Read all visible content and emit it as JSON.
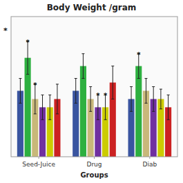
{
  "chart_data": {
    "type": "bar",
    "title": "Body Weight /gram",
    "x_label": "Groups",
    "categories": [
      "Seed-Juice",
      "Drug",
      "Diab"
    ],
    "series": [
      {
        "color": "#3a55a0",
        "values": [
          216,
          216,
          215
        ],
        "errors": [
          1.5,
          1.5,
          1.5
        ]
      },
      {
        "color": "#2db040",
        "values": [
          220,
          219,
          219
        ],
        "errors": [
          2.0,
          1.5,
          1.5
        ]
      },
      {
        "color": "#c8b87a",
        "values": [
          215,
          215,
          216
        ],
        "errors": [
          1.8,
          1.5,
          1.5
        ]
      },
      {
        "color": "#7030a0",
        "values": [
          214,
          214,
          215
        ],
        "errors": [
          1.5,
          1.5,
          1.5
        ]
      },
      {
        "color": "#cccc00",
        "values": [
          214,
          214,
          215
        ],
        "errors": [
          1.5,
          1.5,
          1.2
        ]
      },
      {
        "color": "#cc2222",
        "values": [
          215,
          217,
          214
        ],
        "errors": [
          1.8,
          2.0,
          1.5
        ]
      }
    ],
    "annotations": [
      {
        "text": "*",
        "category": "Seed-Juice",
        "series": 1
      },
      {
        "text": "*",
        "category": "Seed-Juice",
        "series": 2
      },
      {
        "text": "*",
        "category": "Drug",
        "series": 3
      },
      {
        "text": "*",
        "category": "Drug",
        "series": 4
      },
      {
        "text": "*",
        "category": "Diab",
        "series": 1
      },
      {
        "text": "*",
        "y": 223.5
      }
    ],
    "ylim": [
      208,
      225
    ],
    "tick_labels": "x"
  }
}
